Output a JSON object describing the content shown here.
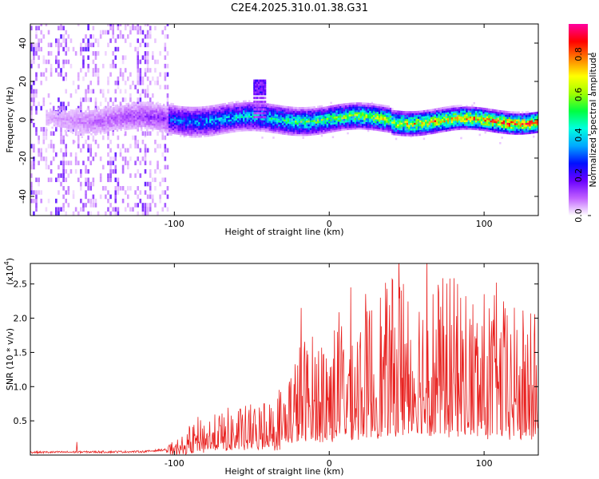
{
  "title": "C2E4.2025.310.01.38.G31",
  "colors": {
    "snr_line": "#e8211f",
    "colormap": [
      "#ffffff",
      "#c060ff",
      "#6a00ff",
      "#0010ff",
      "#00a8ff",
      "#00ffe0",
      "#00ff40",
      "#a0ff00",
      "#ffff00",
      "#ff8000",
      "#ff0000",
      "#ff00a0"
    ]
  },
  "chart_data": [
    {
      "type": "heatmap",
      "name": "spectrogram",
      "xlabel": "Height of straight line (km)",
      "ylabel": "Frequency (Hz)",
      "xlim": [
        -193,
        135
      ],
      "ylim": [
        -50,
        50
      ],
      "xticks": [
        {
          "v": -100,
          "label": "-100"
        },
        {
          "v": 0,
          "label": "0"
        },
        {
          "v": 100,
          "label": "100"
        }
      ],
      "yticks": [
        {
          "v": -40,
          "label": "-40"
        },
        {
          "v": -20,
          "label": "-20"
        },
        {
          "v": 0,
          "label": "0"
        },
        {
          "v": 20,
          "label": "20"
        },
        {
          "v": 40,
          "label": "40"
        }
      ],
      "band_center_hz": 0,
      "noise_region_end_km": -105,
      "bump_feature": {
        "x_km": -45,
        "freq_hz": 18
      },
      "colorbar": {
        "label": "Normalized spectral amplitude",
        "range": [
          0,
          0.95
        ],
        "ticks": [
          {
            "v": 0.0,
            "label": "0.0"
          },
          {
            "v": 0.2,
            "label": "0.2"
          },
          {
            "v": 0.4,
            "label": "0.4"
          },
          {
            "v": 0.6,
            "label": "0.6"
          },
          {
            "v": 0.8,
            "label": "0.8"
          }
        ]
      }
    },
    {
      "type": "line",
      "name": "snr",
      "xlabel": "Height of straight line (km)",
      "ylabel": "SNR (10 * v/v)",
      "multiplier_label": "(x10",
      "multiplier_exp": "4",
      "multiplier_close": ")",
      "xlim": [
        -193,
        135
      ],
      "ylim": [
        0,
        2.8
      ],
      "xticks": [
        {
          "v": -100,
          "label": "-100"
        },
        {
          "v": 0,
          "label": "0"
        },
        {
          "v": 100,
          "label": "100"
        }
      ],
      "yticks": [
        {
          "v": 0.5,
          "label": "0.5"
        },
        {
          "v": 1.0,
          "label": "1.0"
        },
        {
          "v": 1.5,
          "label": "1.5"
        },
        {
          "v": 2.0,
          "label": "2.0"
        },
        {
          "v": 2.5,
          "label": "2.5"
        }
      ],
      "envelope": {
        "x": [
          -193,
          -120,
          -105,
          -95,
          -85,
          -75,
          -60,
          -40,
          -30,
          -25,
          -15,
          0,
          10,
          30,
          50,
          70,
          90,
          110,
          125,
          135
        ],
        "y": [
          0.04,
          0.05,
          0.08,
          0.15,
          0.3,
          0.35,
          0.4,
          0.45,
          0.6,
          0.8,
          1.0,
          1.1,
          1.25,
          1.35,
          1.55,
          1.5,
          1.4,
          1.3,
          1.2,
          1.2
        ]
      },
      "peaks": [
        {
          "x": -163,
          "y": 0.19
        },
        {
          "x": -42,
          "y": 0.75
        },
        {
          "x": -18,
          "y": 2.15
        },
        {
          "x": 14,
          "y": 2.45
        },
        {
          "x": 33,
          "y": 2.3
        },
        {
          "x": 45,
          "y": 2.9
        },
        {
          "x": 48,
          "y": 2.5
        },
        {
          "x": 63,
          "y": 2.9
        },
        {
          "x": 83,
          "y": 2.5
        },
        {
          "x": 108,
          "y": 2.52
        },
        {
          "x": 130,
          "y": 2.07
        }
      ]
    }
  ]
}
